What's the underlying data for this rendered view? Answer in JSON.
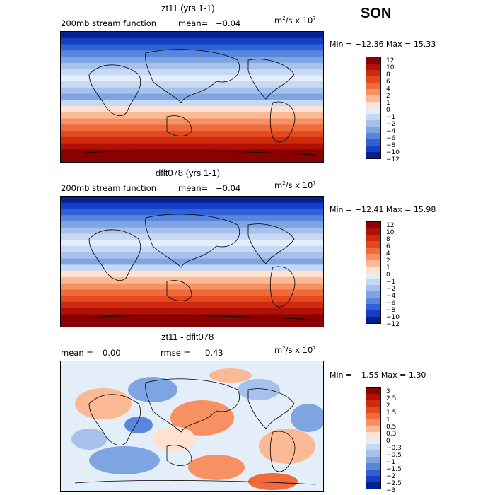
{
  "season": "SON",
  "panels": [
    {
      "title": "zt11 (yrs 1-1)",
      "left_label": "200mb stream function",
      "mean_label": "mean=",
      "mean_value": "−0.04",
      "units_base": "m",
      "units_sup1": "2",
      "units_mid": "/s x 10",
      "units_sup2": "7",
      "minmax": "Min = −12.36 Max =  15.33",
      "colorbar_labels": [
        "12",
        "10",
        "8",
        "6",
        "4",
        "2",
        "1",
        "0",
        "−1",
        "−2",
        "−4",
        "−6",
        "−8",
        "−10",
        "−12"
      ],
      "colors": [
        "#8b0000",
        "#b01006",
        "#d02a0c",
        "#e4481e",
        "#f06a3c",
        "#f79163",
        "#fbba95",
        "#fde3cf",
        "#e4eef9",
        "#c6d8f3",
        "#a6c2ec",
        "#7ea4e2",
        "#5786dc",
        "#2f62d7",
        "#1540c6",
        "#02208f"
      ]
    },
    {
      "title": "dflt078 (yrs 1-1)",
      "left_label": "200mb stream function",
      "mean_label": "mean=",
      "mean_value": "−0.04",
      "units_base": "m",
      "units_sup1": "2",
      "units_mid": "/s x 10",
      "units_sup2": "7",
      "minmax": "Min = −12.41 Max =  15.98",
      "colorbar_labels": [
        "12",
        "10",
        "8",
        "6",
        "4",
        "2",
        "1",
        "0",
        "−1",
        "−2",
        "−4",
        "−6",
        "−8",
        "−10",
        "−12"
      ],
      "colors": [
        "#8b0000",
        "#b01006",
        "#d02a0c",
        "#e4481e",
        "#f06a3c",
        "#f79163",
        "#fbba95",
        "#fde3cf",
        "#e4eef9",
        "#c6d8f3",
        "#a6c2ec",
        "#7ea4e2",
        "#5786dc",
        "#2f62d7",
        "#1540c6",
        "#02208f"
      ]
    },
    {
      "title": "zt11 - dflt078",
      "mean_label": "mean =",
      "mean_value": "0.00",
      "rmse_label": "rmse =",
      "rmse_value": "0.43",
      "units_base": "m",
      "units_sup1": "2",
      "units_mid": "/s x 10",
      "units_sup2": "7",
      "minmax": "Min =  −1.55 Max =   1.30",
      "colorbar_labels": [
        "3",
        "2.5",
        "2",
        "1.5",
        "1",
        "0.5",
        "0.3",
        "0",
        "−0.3",
        "−0.5",
        "−1",
        "−1.5",
        "−2",
        "−2.5",
        "−3"
      ],
      "colors": [
        "#8b0000",
        "#b01006",
        "#d02a0c",
        "#e4481e",
        "#f06a3c",
        "#f79163",
        "#fbba95",
        "#fde3cf",
        "#e4eef9",
        "#c6d8f3",
        "#a6c2ec",
        "#7ea4e2",
        "#5786dc",
        "#2f62d7",
        "#1540c6",
        "#02208f"
      ]
    }
  ],
  "chart_data": [
    {
      "type": "heatmap",
      "title": "zt11 (yrs 1-1)",
      "field": "200mb stream function",
      "mean": -0.04,
      "min": -12.36,
      "max": 15.33,
      "levels": [
        -12,
        -10,
        -8,
        -6,
        -4,
        -2,
        -1,
        0,
        1,
        2,
        4,
        6,
        8,
        10,
        12
      ]
    },
    {
      "type": "heatmap",
      "title": "dflt078 (yrs 1-1)",
      "field": "200mb stream function",
      "mean": -0.04,
      "min": -12.41,
      "max": 15.98,
      "levels": [
        -12,
        -10,
        -8,
        -6,
        -4,
        -2,
        -1,
        0,
        1,
        2,
        4,
        6,
        8,
        10,
        12
      ]
    },
    {
      "type": "heatmap",
      "title": "zt11 - dflt078",
      "mean": 0.0,
      "rmse": 0.43,
      "min": -1.55,
      "max": 1.3,
      "levels": [
        -3,
        -2.5,
        -2,
        -1.5,
        -1,
        -0.5,
        -0.3,
        0,
        0.3,
        0.5,
        1,
        1.5,
        2,
        2.5,
        3
      ]
    }
  ]
}
